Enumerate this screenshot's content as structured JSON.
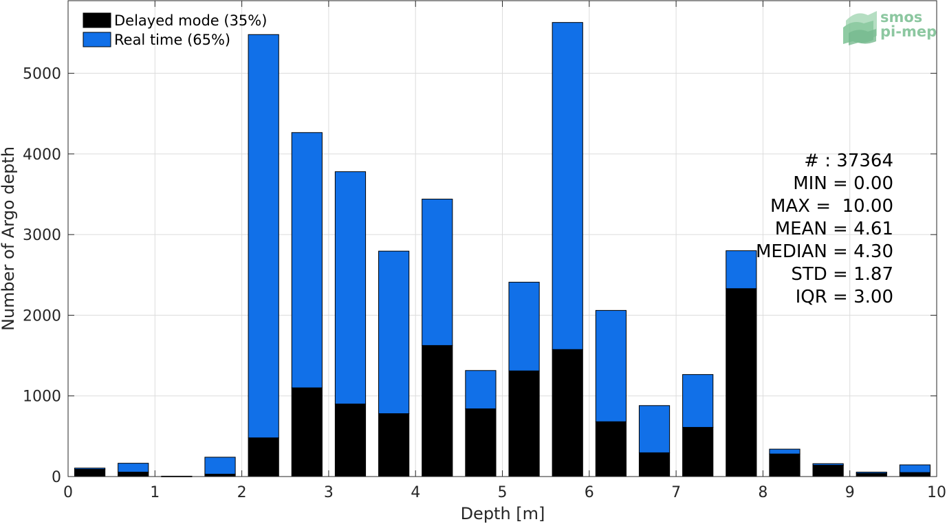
{
  "colors": {
    "delayed": "#000000",
    "realtime": "#1170e8",
    "grid": "#dcdcdc",
    "logo": "#8cc7a0"
  },
  "logo": {
    "line1": "smos",
    "line2": "pi-mep"
  },
  "chart_data": {
    "type": "bar",
    "stacked": true,
    "xlabel": "Depth [m]",
    "ylabel": "Number of Argo depth",
    "xlim": [
      0,
      10
    ],
    "ylim": [
      0,
      5900
    ],
    "xticks": [
      0,
      1,
      2,
      3,
      4,
      5,
      6,
      7,
      8,
      9,
      10
    ],
    "yticks": [
      0,
      1000,
      2000,
      3000,
      4000,
      5000
    ],
    "grid": true,
    "legend_position": "top-left",
    "bin_centers": [
      0.25,
      0.75,
      1.25,
      1.75,
      2.25,
      2.75,
      3.25,
      3.75,
      4.25,
      4.75,
      5.25,
      5.75,
      6.25,
      6.75,
      7.25,
      7.75,
      8.25,
      8.75,
      9.25,
      9.75
    ],
    "series": [
      {
        "name": "Delayed mode (35%)",
        "values": [
          90,
          55,
          5,
          30,
          480,
          1100,
          900,
          780,
          1625,
          840,
          1310,
          1575,
          680,
          295,
          610,
          2330,
          280,
          140,
          40,
          50
        ]
      },
      {
        "name": "Real time (65%)",
        "values": [
          15,
          110,
          0,
          210,
          5000,
          3165,
          2880,
          2015,
          1815,
          475,
          1100,
          4055,
          1380,
          585,
          655,
          470,
          60,
          20,
          15,
          95
        ]
      }
    ],
    "stats": [
      "# : 37364",
      "MIN = 0.00",
      "MAX =  10.00",
      "MEAN = 4.61",
      "MEDIAN = 4.30",
      "STD = 1.87",
      "IQR = 3.00"
    ]
  }
}
